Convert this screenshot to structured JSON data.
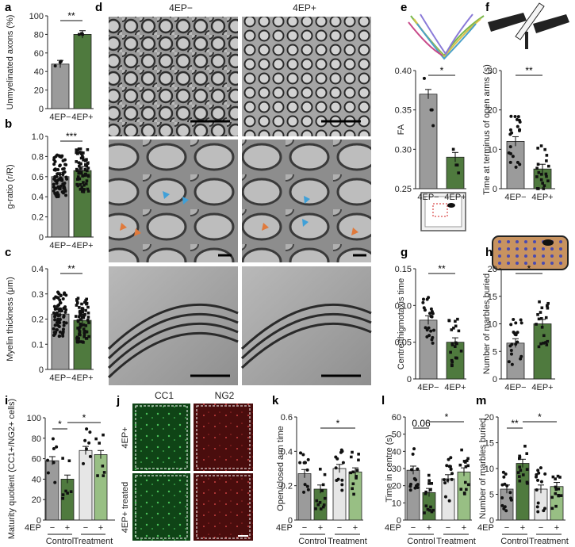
{
  "colors": {
    "gray": "#9b9b9b",
    "green": "#4f7a3e",
    "light_gray": "#e6e6e6",
    "light_green": "#98bf84",
    "em_bg": "#8a8a8a",
    "cc1": "#1e6e28",
    "ng2": "#7a1a1a"
  },
  "panel_labels": [
    "a",
    "b",
    "c",
    "d",
    "e",
    "f",
    "g",
    "h",
    "i",
    "j",
    "k",
    "l",
    "m"
  ],
  "panel_d": {
    "col_headers": [
      "4EP−",
      "4EP+"
    ]
  },
  "panel_j": {
    "col_headers": [
      "CC1",
      "NG2"
    ],
    "row_labels": [
      "4EP+",
      "4EP+ treated"
    ]
  },
  "chart_data": [
    {
      "id": "a",
      "type": "bar",
      "categories": [
        "4EP−",
        "4EP+"
      ],
      "values": [
        48,
        80
      ],
      "ylim": [
        0,
        100
      ],
      "yticks": [
        0,
        20,
        40,
        60,
        80,
        100
      ],
      "ylabel": "Unmyelinated axons (%)",
      "significance": "**",
      "points": [
        [
          50,
          51,
          46
        ],
        [
          80,
          81,
          80
        ]
      ]
    },
    {
      "id": "b",
      "type": "bar",
      "categories": [
        "4EP−",
        "4EP+"
      ],
      "values": [
        0.6,
        0.66
      ],
      "ylim": [
        0,
        1.0
      ],
      "yticks": [
        0,
        0.2,
        0.4,
        0.6,
        0.8,
        1.0
      ],
      "ylabel": "g-ratio (r/R)",
      "significance": "***"
    },
    {
      "id": "c",
      "type": "bar",
      "categories": [
        "4EP−",
        "4EP+"
      ],
      "values": [
        0.22,
        0.195
      ],
      "ylim": [
        0,
        0.4
      ],
      "yticks": [
        0,
        0.1,
        0.2,
        0.3,
        0.4
      ],
      "ylabel": "Myelin thickness (μm)",
      "significance": "**"
    },
    {
      "id": "e",
      "type": "bar",
      "categories": [
        "4EP−",
        "4EP+"
      ],
      "values": [
        0.37,
        0.29
      ],
      "ylim": [
        0.25,
        0.4
      ],
      "yticks": [
        0.25,
        0.3,
        0.35,
        0.4
      ],
      "ylabel": "FA",
      "significance": "*",
      "points": [
        [
          0.39,
          0.35,
          0.35,
          0.33
        ],
        [
          0.3,
          0.28,
          0.28,
          0.27
        ]
      ]
    },
    {
      "id": "f",
      "type": "bar",
      "categories": [
        "4EP−",
        "4EP+"
      ],
      "values": [
        12,
        5
      ],
      "ylim": [
        0,
        30
      ],
      "yticks": [
        0,
        10,
        20,
        30
      ],
      "ylabel": "Time at terminus of open arms (s)",
      "significance": "**"
    },
    {
      "id": "g",
      "type": "bar",
      "categories": [
        "4EP−",
        "4EP+"
      ],
      "values": [
        0.08,
        0.05
      ],
      "ylim": [
        0,
        0.15
      ],
      "yticks": [
        0,
        0.05,
        0.1,
        0.15
      ],
      "ylabel": "Centre/thigmotaxis time",
      "significance": "**"
    },
    {
      "id": "h",
      "type": "bar",
      "categories": [
        "4EP−",
        "4EP+"
      ],
      "values": [
        6.5,
        10
      ],
      "ylim": [
        0,
        20
      ],
      "yticks": [
        0,
        5,
        10,
        15,
        20
      ],
      "ylabel": "Number of marbles buried",
      "significance": "*"
    },
    {
      "id": "i",
      "type": "bar",
      "groups": [
        "Control",
        "Treatment"
      ],
      "row_label": "4EP",
      "signs": [
        "−",
        "+",
        "−",
        "+"
      ],
      "values": [
        58,
        40,
        68,
        64
      ],
      "ylim": [
        0,
        100
      ],
      "yticks": [
        0,
        20,
        40,
        60,
        80,
        100
      ],
      "ylabel": "Maturity quotient (CC1+/NG2+ cells)",
      "significance": [
        "*",
        "*"
      ]
    },
    {
      "id": "k",
      "type": "bar",
      "groups": [
        "Control",
        "Treatment"
      ],
      "row_label": "4EP",
      "signs": [
        "−",
        "+",
        "−",
        "+"
      ],
      "values": [
        0.27,
        0.18,
        0.3,
        0.28
      ],
      "ylim": [
        0,
        0.6
      ],
      "yticks": [
        0,
        0.2,
        0.4,
        0.6
      ],
      "ylabel": "Open/closed arm time",
      "significance": [
        "*"
      ]
    },
    {
      "id": "l",
      "type": "bar",
      "groups": [
        "Control",
        "Treatment"
      ],
      "row_label": "4EP",
      "signs": [
        "−",
        "+",
        "−",
        "+"
      ],
      "values": [
        29,
        16,
        24,
        28
      ],
      "ylim": [
        0,
        60
      ],
      "yticks": [
        0,
        10,
        20,
        30,
        40,
        50,
        60
      ],
      "ylabel": "Time in centre (s)",
      "significance": [
        "0.06",
        "*"
      ]
    },
    {
      "id": "m",
      "type": "bar",
      "groups": [
        "Control",
        "Treatment"
      ],
      "row_label": "4EP",
      "signs": [
        "−",
        "+",
        "−",
        "+"
      ],
      "values": [
        6,
        11,
        6,
        6.5
      ],
      "ylim": [
        0,
        20
      ],
      "yticks": [
        0,
        5,
        10,
        15,
        20
      ],
      "ylabel": "Number of marbles buried",
      "significance": [
        "**",
        "*"
      ]
    }
  ]
}
